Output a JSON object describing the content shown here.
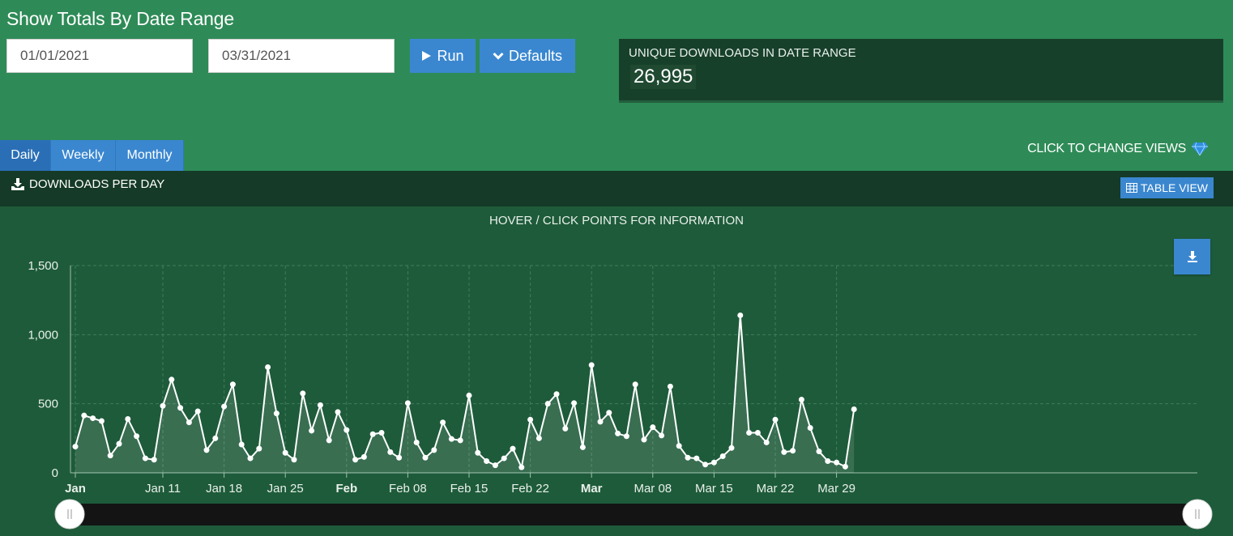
{
  "page_title": "Show Totals By Date Range",
  "date_range": {
    "start": "01/01/2021",
    "end": "03/31/2021"
  },
  "buttons": {
    "run": "Run",
    "defaults": "Defaults",
    "table_view": "TABLE VIEW"
  },
  "stat": {
    "label": "UNIQUE DOWNLOADS IN DATE RANGE",
    "value": "26,995"
  },
  "tabs": [
    {
      "label": "Daily",
      "active": true
    },
    {
      "label": "Weekly",
      "active": false
    },
    {
      "label": "Monthly",
      "active": false
    }
  ],
  "change_views_label": "CLICK TO CHANGE VIEWS",
  "panel_title": "DOWNLOADS PER DAY",
  "chart_hint": "HOVER / CLICK POINTS FOR INFORMATION",
  "icons": {
    "run": "play-icon",
    "defaults": "chevron-down-icon",
    "change_views": "gem-icon",
    "panel": "download-icon",
    "table_view": "table-icon",
    "export": "download-icon"
  },
  "colors": {
    "page_bg": "#2e8b57",
    "button": "#3a87d0",
    "stat_bg": "#17402a",
    "chart_bg": "#1e5b3a",
    "line": "#ffffff",
    "navigator": "#141414"
  },
  "chart_data": {
    "type": "area",
    "title": "",
    "xlabel": "",
    "ylabel": "",
    "ylim": [
      0,
      1500
    ],
    "yticks": [
      "0",
      "500",
      "1,000",
      "1,500"
    ],
    "x_start": "2021-01-01",
    "x_end": "2021-03-31",
    "xticks": [
      {
        "label": "Jan",
        "date": "2021-01-01",
        "bold": true
      },
      {
        "label": "Jan 11",
        "date": "2021-01-11",
        "bold": false
      },
      {
        "label": "Jan 18",
        "date": "2021-01-18",
        "bold": false
      },
      {
        "label": "Jan 25",
        "date": "2021-01-25",
        "bold": false
      },
      {
        "label": "Feb",
        "date": "2021-02-01",
        "bold": true
      },
      {
        "label": "Feb 08",
        "date": "2021-02-08",
        "bold": false
      },
      {
        "label": "Feb 15",
        "date": "2021-02-15",
        "bold": false
      },
      {
        "label": "Feb 22",
        "date": "2021-02-22",
        "bold": false
      },
      {
        "label": "Mar",
        "date": "2021-03-01",
        "bold": true
      },
      {
        "label": "Mar 08",
        "date": "2021-03-08",
        "bold": false
      },
      {
        "label": "Mar 15",
        "date": "2021-03-15",
        "bold": false
      },
      {
        "label": "Mar 22",
        "date": "2021-03-22",
        "bold": false
      },
      {
        "label": "Mar 29",
        "date": "2021-03-29",
        "bold": false
      }
    ],
    "grid": true,
    "series": [
      {
        "values": [
          190,
          415,
          395,
          375,
          125,
          210,
          390,
          265,
          105,
          95,
          485,
          675,
          470,
          365,
          445,
          165,
          250,
          480,
          640,
          205,
          105,
          175,
          765,
          430,
          145,
          95,
          575,
          305,
          490,
          235,
          440,
          310,
          95,
          115,
          280,
          290,
          150,
          110,
          505,
          220,
          110,
          165,
          365,
          245,
          235,
          560,
          145,
          85,
          55,
          105,
          175,
          40,
          385,
          250,
          500,
          570,
          320,
          505,
          185,
          780,
          370,
          435,
          285,
          265,
          640,
          240,
          330,
          270,
          625,
          195,
          110,
          105,
          60,
          75,
          120,
          180,
          1140,
          290,
          290,
          220,
          385,
          150,
          160,
          530,
          325,
          155,
          85,
          75,
          45,
          460
        ]
      }
    ]
  }
}
